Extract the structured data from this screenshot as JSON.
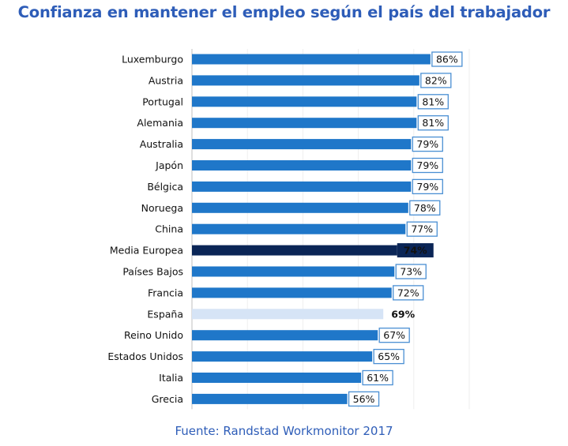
{
  "title": "Confianza en mantener el empleo según el país del trabajador",
  "source": "Fuente: Randstad Workmonitor 2017",
  "colors": {
    "bar": "#1F77C9",
    "bar_media": "#0A2556",
    "bar_espana": "#D6E4F6",
    "label_border": "#4A8FD3",
    "title": "#2E5DB8"
  },
  "chart_data": {
    "type": "bar",
    "orientation": "horizontal",
    "title": "Confianza en mantener el empleo según el país del trabajador",
    "xlabel": "",
    "ylabel": "",
    "xlim": [
      0,
      100
    ],
    "unit": "%",
    "categories": [
      "Luxemburgo",
      "Austria",
      "Portugal",
      "Alemania",
      "Australia",
      "Japón",
      "Bélgica",
      "Noruega",
      "China",
      "Media Europea",
      "Países Bajos",
      "Francia",
      "España",
      "Reino Unido",
      "Estados Unidos",
      "Italia",
      "Grecia"
    ],
    "values": [
      86,
      82,
      81,
      81,
      79,
      79,
      79,
      78,
      77,
      74,
      73,
      72,
      69,
      67,
      65,
      61,
      56
    ],
    "labels": [
      "86%",
      "82%",
      "81%",
      "81%",
      "79%",
      "79%",
      "79%",
      "78%",
      "77%",
      "74%",
      "73%",
      "72%",
      "69%",
      "67%",
      "65%",
      "61%",
      "56%"
    ],
    "highlight": {
      "Media Europea": "dark",
      "España": "light"
    },
    "grid": true
  }
}
